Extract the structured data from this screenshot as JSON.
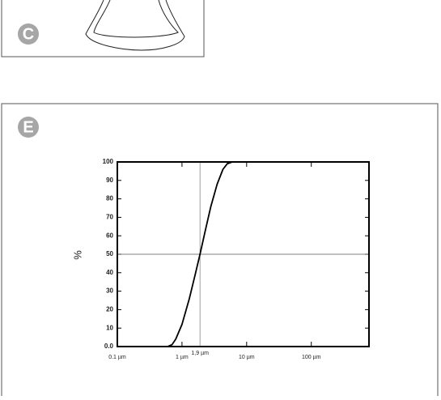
{
  "panels": [
    {
      "label": "C"
    },
    {
      "label": "E"
    }
  ],
  "chart_data": {
    "type": "line",
    "y_label": "%",
    "x": [
      0.1,
      0.6,
      0.7,
      0.8,
      1,
      1.3,
      1.6,
      1.9,
      2.3,
      2.8,
      3.5,
      4.3,
      5,
      6,
      780
    ],
    "series": [
      {
        "color": "#000000",
        "values": [
          0,
          0,
          1,
          4,
          12,
          26,
          39,
          50,
          63,
          76,
          88,
          96,
          99,
          100,
          100
        ]
      }
    ],
    "xscale": "log",
    "xlim": [
      0.1,
      780
    ],
    "ylim": [
      0,
      100
    ],
    "xticks": [
      {
        "value": 0.1,
        "label": "0.1 µm"
      },
      {
        "value": 1,
        "label": "1 µm"
      },
      {
        "value": 10,
        "label": "10 µm"
      },
      {
        "value": 100,
        "label": "100 µm"
      }
    ],
    "yticks": [
      {
        "value": 0,
        "label": "0.0"
      },
      10,
      20,
      30,
      40,
      50,
      60,
      70,
      80,
      90,
      100
    ],
    "marker_x": {
      "value": 1.9,
      "label": "1,9 µm"
    },
    "reference_y": 50
  }
}
